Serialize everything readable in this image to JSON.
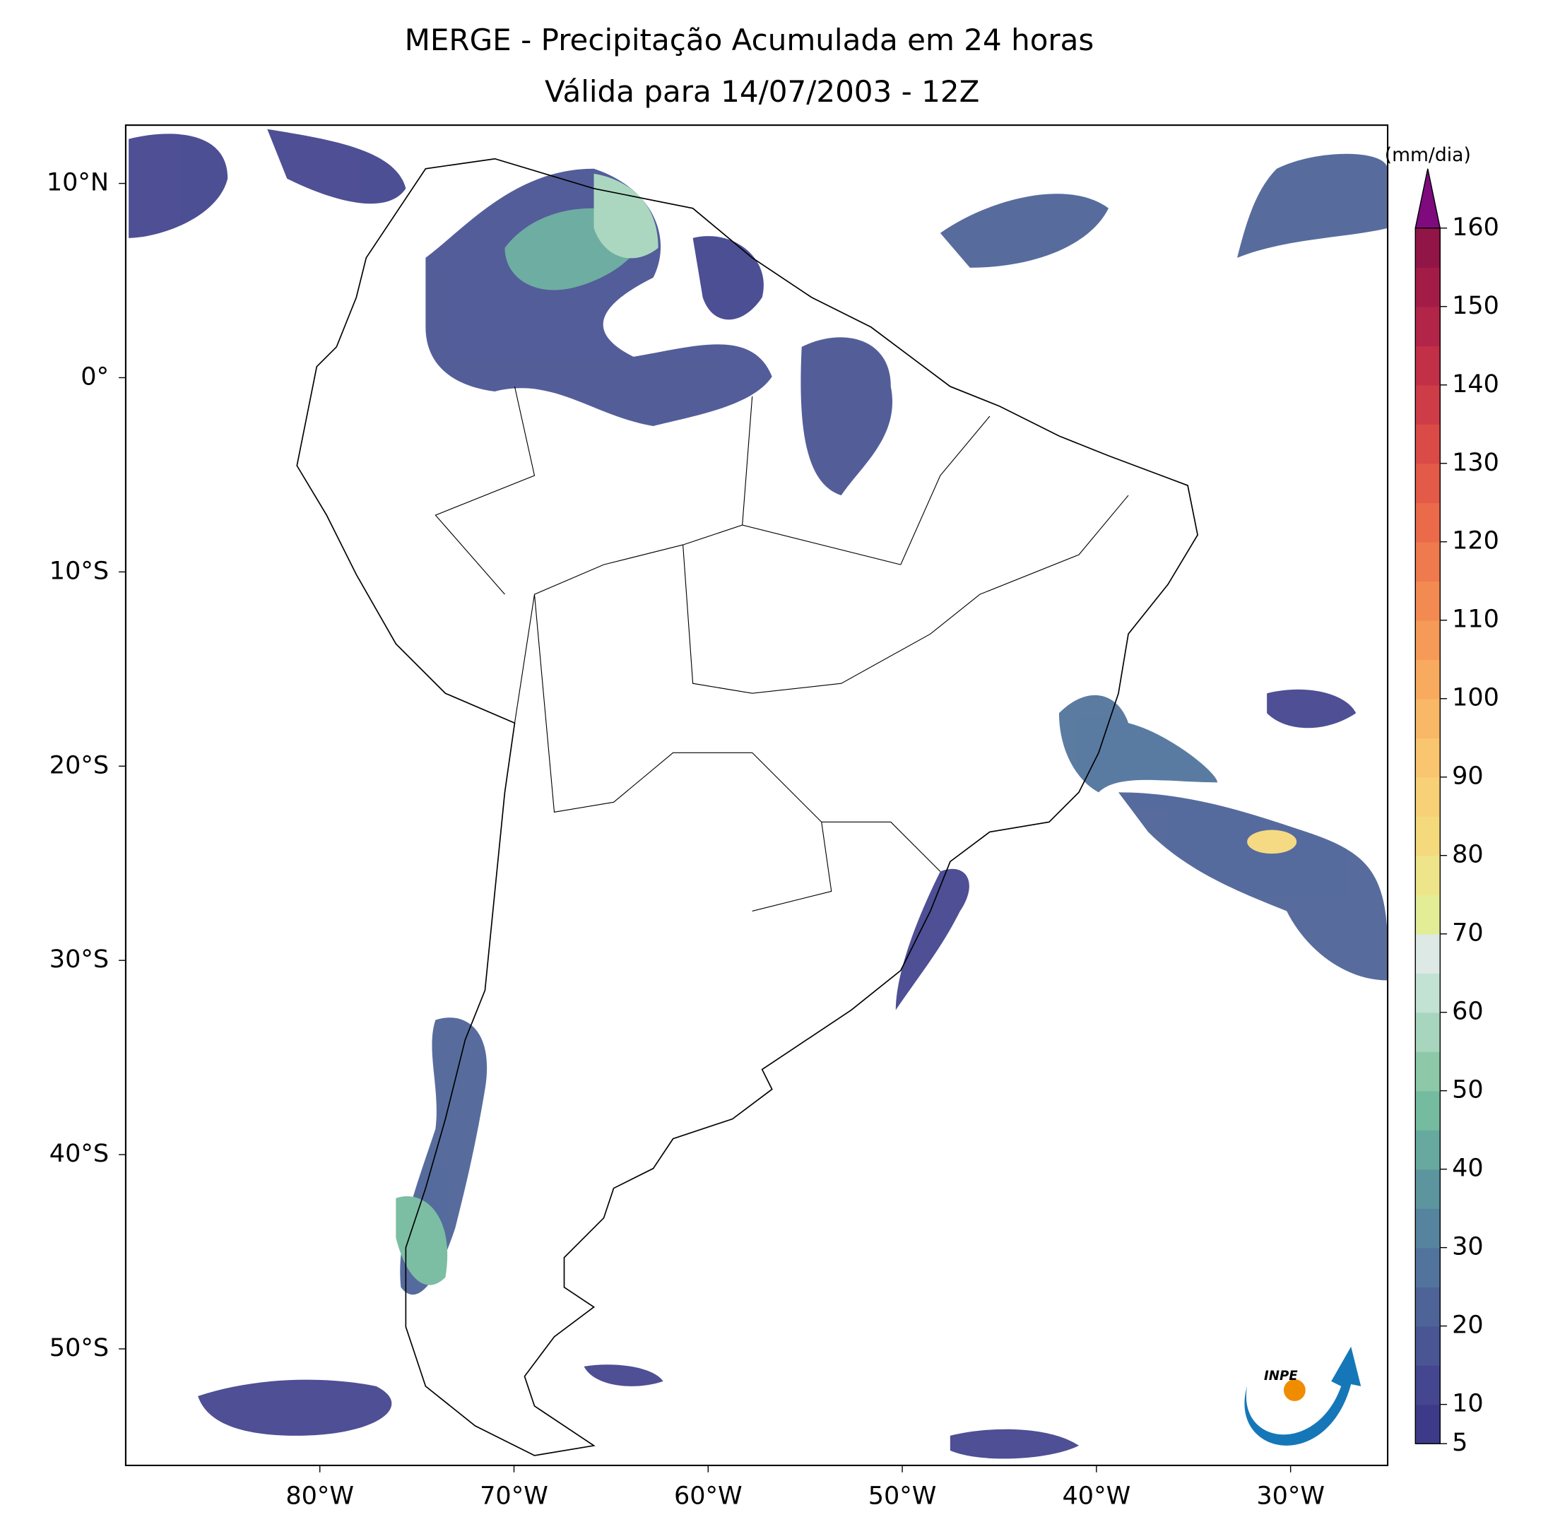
{
  "chart_data": {
    "type": "map",
    "title": "MERGE - Precipitação Acumulada em 24 horas",
    "subtitle": "Válida para 14/07/2003 - 12Z",
    "xlim": [
      -90,
      -25
    ],
    "ylim": [
      -56,
      13
    ],
    "xticks": [
      {
        "value": -80,
        "label": "80°W"
      },
      {
        "value": -70,
        "label": "70°W"
      },
      {
        "value": -60,
        "label": "60°W"
      },
      {
        "value": -50,
        "label": "50°W"
      },
      {
        "value": -40,
        "label": "40°W"
      },
      {
        "value": -30,
        "label": "30°W"
      }
    ],
    "yticks": [
      {
        "value": 10,
        "label": "10°N"
      },
      {
        "value": 0,
        "label": "0°"
      },
      {
        "value": -10,
        "label": "10°S"
      },
      {
        "value": -20,
        "label": "20°S"
      },
      {
        "value": -30,
        "label": "30°S"
      },
      {
        "value": -40,
        "label": "40°S"
      },
      {
        "value": -50,
        "label": "50°S"
      }
    ],
    "colorbar": {
      "label": "(mm/dia)",
      "levels": [
        5,
        10,
        15,
        20,
        25,
        30,
        35,
        40,
        45,
        50,
        55,
        60,
        65,
        70,
        75,
        80,
        85,
        90,
        95,
        100,
        105,
        110,
        115,
        120,
        125,
        130,
        135,
        140,
        145,
        150,
        155,
        160
      ],
      "colors": [
        "#3e3a8a",
        "#44468f",
        "#4a5594",
        "#4e6498",
        "#52749c",
        "#56849e",
        "#5c959e",
        "#67a99e",
        "#75bb9f",
        "#8dc9a9",
        "#a7d5bd",
        "#c2e2d4",
        "#dce9e4",
        "#e3ed96",
        "#eee48a",
        "#f5d97d",
        "#f8d076",
        "#f9c56e",
        "#f9b866",
        "#f8aa5e",
        "#f69a58",
        "#f38a52",
        "#ef7a4d",
        "#ea6a4a",
        "#e35a48",
        "#da4b47",
        "#ce3d47",
        "#c13047",
        "#b32548",
        "#a31c48",
        "#921548"
      ],
      "extend_color": "#7e0a7e",
      "ticks": [
        5,
        10,
        20,
        30,
        40,
        50,
        60,
        70,
        80,
        90,
        100,
        110,
        120,
        130,
        140,
        150,
        160
      ]
    }
  },
  "logo": {
    "text": "INPE"
  }
}
